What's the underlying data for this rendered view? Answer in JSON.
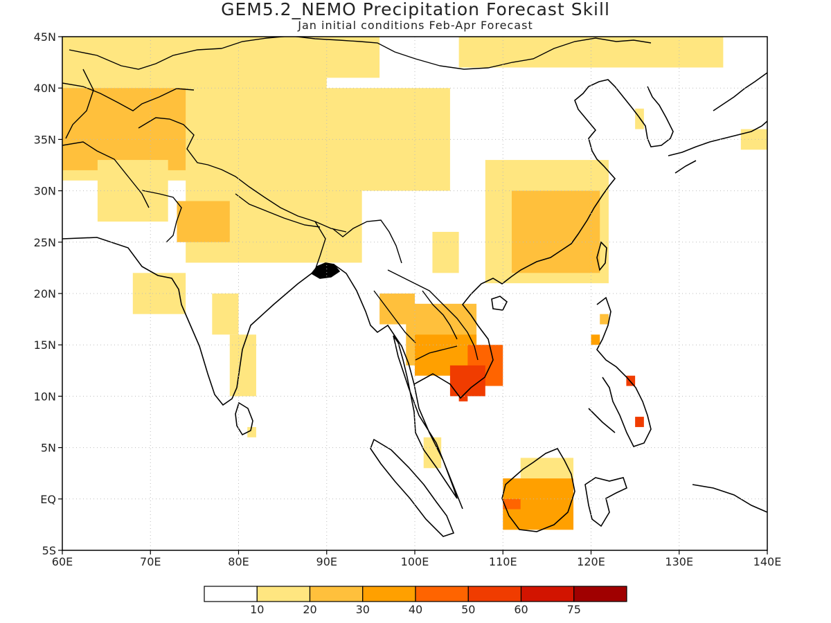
{
  "title": "GEM5.2_NEMO Precipitation Forecast Skill",
  "subtitle": "Jan initial conditions  Feb-Apr Forecast",
  "map": {
    "lon_range": [
      60,
      140
    ],
    "lat_range": [
      -5,
      45
    ],
    "lon_tick_labels": [
      "60E",
      "70E",
      "80E",
      "90E",
      "100E",
      "110E",
      "120E",
      "130E",
      "140E"
    ],
    "lat_tick_labels": [
      "5S",
      "EQ",
      "5N",
      "10N",
      "15N",
      "20N",
      "25N",
      "30N",
      "35N",
      "40N",
      "45N"
    ],
    "grid": "dotted"
  },
  "colorbar": {
    "labels": [
      "10",
      "20",
      "30",
      "40",
      "50",
      "60",
      "75"
    ],
    "colors": [
      "#ffffff",
      "#ffe680",
      "#ffc03c",
      "#ffa000",
      "#ff6400",
      "#f03c00",
      "#d21400",
      "#a00000"
    ]
  },
  "skill_regions": [
    {
      "level": 1,
      "lon": 60,
      "lat": 45,
      "w": 30,
      "h": 14
    },
    {
      "level": 2,
      "lon": 60,
      "lat": 40,
      "w": 14,
      "h": 8
    },
    {
      "level": 1,
      "lon": 64,
      "lat": 33,
      "w": 8,
      "h": 6
    },
    {
      "level": 1,
      "lon": 74,
      "lat": 33,
      "w": 20,
      "h": 10
    },
    {
      "level": 2,
      "lon": 73,
      "lat": 29,
      "w": 6,
      "h": 4
    },
    {
      "level": 1,
      "lon": 68,
      "lat": 22,
      "w": 6,
      "h": 4
    },
    {
      "level": 1,
      "lon": 77,
      "lat": 20,
      "w": 3,
      "h": 4
    },
    {
      "level": 1,
      "lon": 79,
      "lat": 16,
      "w": 3,
      "h": 6
    },
    {
      "level": 1,
      "lon": 81,
      "lat": 7,
      "w": 1,
      "h": 1
    },
    {
      "level": 1,
      "lon": 88,
      "lat": 40,
      "w": 16,
      "h": 10
    },
    {
      "level": 1,
      "lon": 84,
      "lat": 45,
      "w": 12,
      "h": 4
    },
    {
      "level": 1,
      "lon": 105,
      "lat": 45,
      "w": 30,
      "h": 3
    },
    {
      "level": 1,
      "lon": 108,
      "lat": 33,
      "w": 14,
      "h": 12
    },
    {
      "level": 2,
      "lon": 111,
      "lat": 30,
      "w": 10,
      "h": 8
    },
    {
      "level": 1,
      "lon": 102,
      "lat": 26,
      "w": 3,
      "h": 4
    },
    {
      "level": 2,
      "lon": 96,
      "lat": 20,
      "w": 4,
      "h": 3
    },
    {
      "level": 2,
      "lon": 99,
      "lat": 19,
      "w": 8,
      "h": 6
    },
    {
      "level": 3,
      "lon": 100,
      "lat": 16,
      "w": 7,
      "h": 4
    },
    {
      "level": 4,
      "lon": 106,
      "lat": 15,
      "w": 4,
      "h": 4
    },
    {
      "level": 5,
      "lon": 104,
      "lat": 13,
      "w": 4,
      "h": 3
    },
    {
      "level": 5,
      "lon": 105,
      "lat": 10.5,
      "w": 1,
      "h": 1
    },
    {
      "level": 2,
      "lon": 121,
      "lat": 18,
      "w": 1,
      "h": 1
    },
    {
      "level": 3,
      "lon": 120,
      "lat": 16,
      "w": 1,
      "h": 1
    },
    {
      "level": 5,
      "lon": 124,
      "lat": 12,
      "w": 1,
      "h": 1
    },
    {
      "level": 5,
      "lon": 125,
      "lat": 8,
      "w": 1,
      "h": 1
    },
    {
      "level": 1,
      "lon": 101,
      "lat": 6,
      "w": 2,
      "h": 3
    },
    {
      "level": 1,
      "lon": 112,
      "lat": 4,
      "w": 6,
      "h": 2
    },
    {
      "level": 3,
      "lon": 110,
      "lat": 2,
      "w": 8,
      "h": 5
    },
    {
      "level": 4,
      "lon": 110,
      "lat": 0,
      "w": 2,
      "h": 1
    },
    {
      "level": 1,
      "lon": 125,
      "lat": 38,
      "w": 1,
      "h": 2
    },
    {
      "level": 1,
      "lon": 137,
      "lat": 36,
      "w": 3,
      "h": 2
    }
  ]
}
